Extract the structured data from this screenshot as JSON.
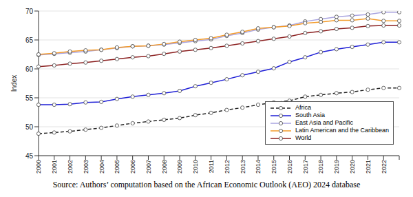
{
  "chart_data": {
    "type": "line",
    "y_label": "Index",
    "source": "Source: Authors’ computation based on the African Economic Outlook (AEO) 2024 database",
    "categories": [
      "2000",
      "2001",
      "2002",
      "2003",
      "2004",
      "2005",
      "2006",
      "2007",
      "2008",
      "2009",
      "2010",
      "2011",
      "2012",
      "2013",
      "2014",
      "2015",
      "2016",
      "2017",
      "2018",
      "2019",
      "2020",
      "2021",
      "2022",
      null
    ],
    "ylim": [
      45,
      70
    ],
    "yticks": [
      45,
      50,
      55,
      60,
      65,
      70
    ],
    "grid": true,
    "legend": "bottom right",
    "marker": "circle",
    "series": [
      {
        "name": "Africa",
        "color": "#222222",
        "line_style": "dashed",
        "values": [
          48.8,
          49.0,
          49.2,
          49.5,
          49.8,
          50.2,
          50.6,
          50.9,
          51.2,
          51.5,
          52.0,
          52.4,
          52.9,
          53.3,
          53.8,
          54.2,
          54.5,
          55.2,
          55.5,
          55.8,
          56.0,
          56.4,
          56.7,
          56.7
        ]
      },
      {
        "name": "South Asia",
        "color": "#1f1fd6",
        "line_style": "solid",
        "values": [
          53.8,
          53.8,
          53.9,
          54.2,
          54.3,
          54.8,
          55.2,
          55.5,
          55.8,
          56.2,
          57.0,
          57.6,
          58.2,
          58.9,
          59.5,
          60.1,
          61.2,
          62.0,
          62.9,
          63.4,
          63.8,
          64.2,
          64.6,
          64.6
        ]
      },
      {
        "name": "East Asia and Pacific",
        "color": "#a9a4e0",
        "line_style": "solid",
        "values": [
          62.4,
          62.6,
          62.8,
          63.0,
          63.3,
          63.6,
          63.9,
          64.0,
          64.2,
          64.5,
          64.8,
          65.1,
          65.7,
          66.2,
          66.8,
          67.2,
          67.5,
          68.2,
          68.6,
          69.0,
          69.2,
          69.4,
          69.8,
          69.8
        ]
      },
      {
        "name": "Latin American and the Caribbean",
        "color": "#f39b2a",
        "line_style": "solid",
        "values": [
          62.5,
          62.7,
          63.0,
          63.2,
          63.3,
          63.7,
          63.9,
          64.0,
          64.3,
          64.7,
          65.0,
          65.3,
          65.9,
          66.4,
          67.0,
          67.2,
          67.4,
          67.9,
          68.1,
          68.4,
          68.4,
          68.7,
          68.3,
          68.3
        ]
      },
      {
        "name": "World",
        "color": "#8b2020",
        "line_style": "solid",
        "values": [
          60.4,
          60.6,
          60.9,
          61.1,
          61.4,
          61.7,
          62.0,
          62.2,
          62.6,
          63.0,
          63.3,
          63.6,
          64.0,
          64.4,
          64.8,
          65.2,
          65.6,
          66.2,
          66.5,
          66.9,
          67.1,
          67.4,
          67.5,
          67.5
        ]
      }
    ]
  }
}
